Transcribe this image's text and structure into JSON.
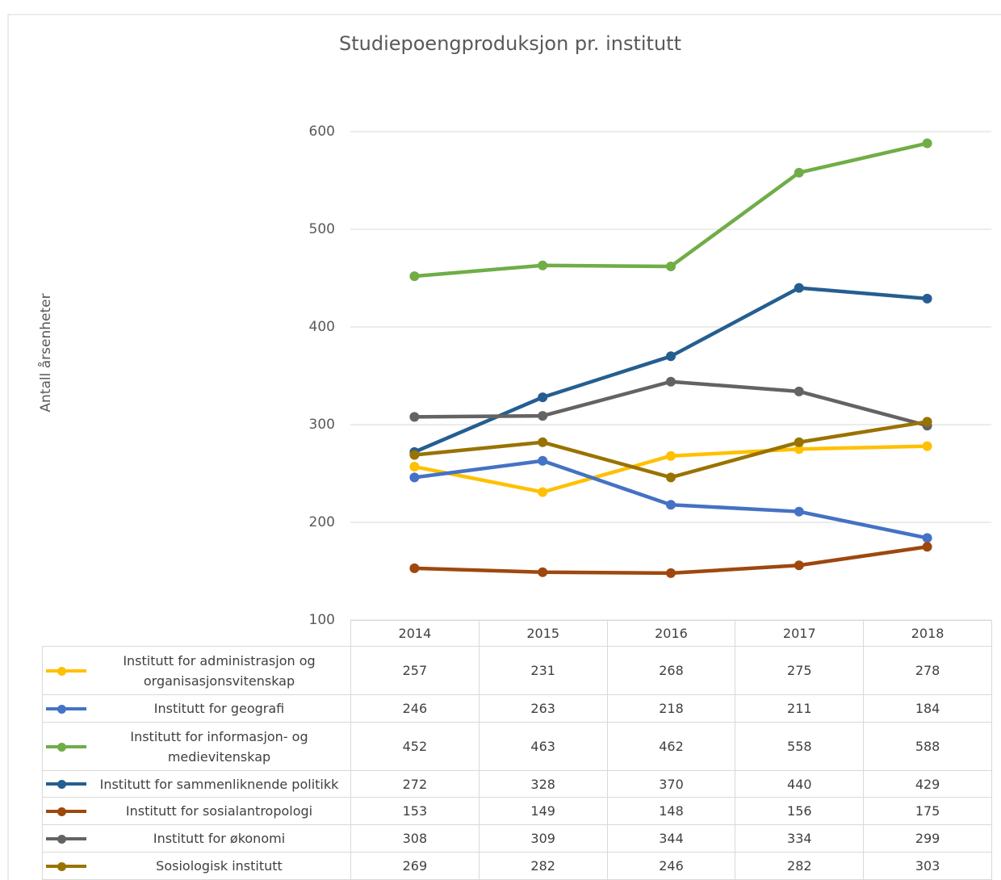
{
  "chart_data": {
    "type": "line",
    "title": "Studiepoengproduksjon pr. institutt",
    "y_label": "Antall årsenheter",
    "categories": [
      "2014",
      "2015",
      "2016",
      "2017",
      "2018"
    ],
    "ylim": [
      100,
      600
    ],
    "yticks": [
      100,
      200,
      300,
      400,
      500,
      600
    ],
    "grid": true,
    "series": [
      {
        "name": "Institutt for administrasjon og organisasjonsvitenskap",
        "color": "#ffc000",
        "values": [
          257,
          231,
          268,
          275,
          278
        ]
      },
      {
        "name": "Institutt for geografi",
        "color": "#4472c4",
        "values": [
          246,
          263,
          218,
          211,
          184
        ]
      },
      {
        "name": "Institutt for informasjon- og medievitenskap",
        "color": "#70ad47",
        "values": [
          452,
          463,
          462,
          558,
          588
        ]
      },
      {
        "name": "Institutt for sammenliknende politikk",
        "color": "#255e91",
        "values": [
          272,
          328,
          370,
          440,
          429
        ]
      },
      {
        "name": "Institutt for sosialantropologi",
        "color": "#9e480e",
        "values": [
          153,
          149,
          148,
          156,
          175
        ]
      },
      {
        "name": "Institutt for økonomi",
        "color": "#636363",
        "values": [
          308,
          309,
          344,
          334,
          299
        ]
      },
      {
        "name": "Sosiologisk institutt",
        "color": "#997300",
        "values": [
          269,
          282,
          246,
          282,
          303
        ]
      }
    ]
  }
}
